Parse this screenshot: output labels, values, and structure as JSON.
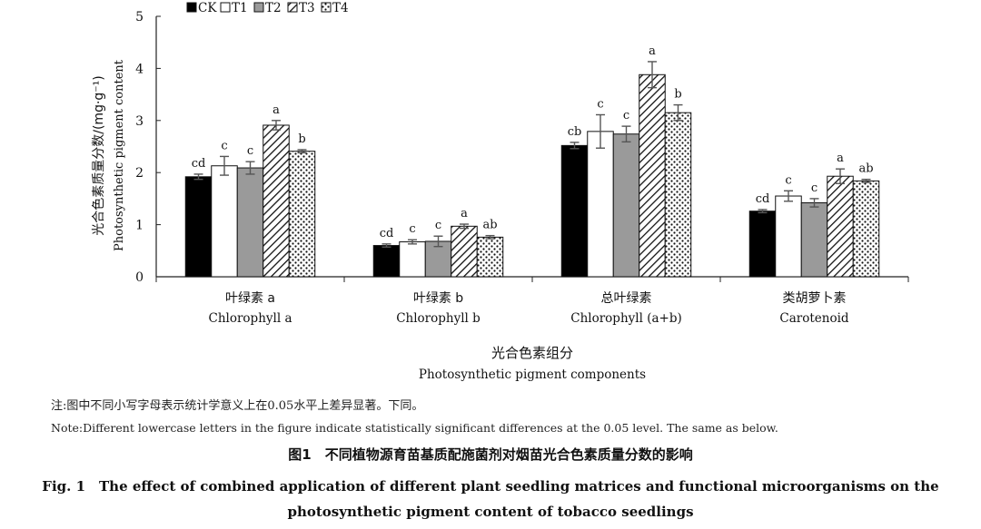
{
  "chart_data": {
    "type": "bar",
    "ylabel_cn": "光合色素质量分数/(mg·g⁻¹)",
    "ylabel_en": "Photosynthetic pigment content",
    "xlabel_cn": "光合色素组分",
    "xlabel_en": "Photosynthetic pigment components",
    "ylim": [
      0,
      5
    ],
    "yticks": [
      "0",
      "1",
      "2",
      "3",
      "4",
      "5"
    ],
    "grid": false,
    "legend_position": "top-left",
    "categories": [
      {
        "cn": "叶绿素 a",
        "en": "Chlorophyll a"
      },
      {
        "cn": "叶绿素 b",
        "en": "Chlorophyll b"
      },
      {
        "cn": "总叶绿素",
        "en": "Chlorophyll (a+b)"
      },
      {
        "cn": "类胡萝卜素",
        "en": "Carotenoid"
      }
    ],
    "series": [
      {
        "name": "CK",
        "pattern": "solid-black",
        "values": [
          1.92,
          0.6,
          2.52,
          1.26
        ],
        "errors": [
          0.05,
          0.03,
          0.06,
          0.03
        ],
        "letters": [
          "cd",
          "cd",
          "cb",
          "cd"
        ]
      },
      {
        "name": "T1",
        "pattern": "white",
        "values": [
          2.13,
          0.67,
          2.79,
          1.55
        ],
        "errors": [
          0.18,
          0.04,
          0.32,
          0.1
        ],
        "letters": [
          "c",
          "c",
          "c",
          "c"
        ]
      },
      {
        "name": "T2",
        "pattern": "solid-gray",
        "values": [
          2.09,
          0.68,
          2.74,
          1.42
        ],
        "errors": [
          0.12,
          0.1,
          0.15,
          0.08
        ],
        "letters": [
          "c",
          "c",
          "c",
          "c"
        ]
      },
      {
        "name": "T3",
        "pattern": "diagonal-hatch",
        "values": [
          2.91,
          0.97,
          3.88,
          1.93
        ],
        "errors": [
          0.09,
          0.04,
          0.25,
          0.14
        ],
        "letters": [
          "a",
          "a",
          "a",
          "a"
        ]
      },
      {
        "name": "T4",
        "pattern": "dots",
        "values": [
          2.41,
          0.76,
          3.15,
          1.84
        ],
        "errors": [
          0.03,
          0.03,
          0.15,
          0.03
        ],
        "letters": [
          "b",
          "ab",
          "b",
          "ab"
        ]
      }
    ]
  },
  "note_cn": "注:图中不同小写字母表示统计学意义上在0.05水平上差异显著。下同。",
  "note_en": "Note:Different lowercase letters in the figure indicate statistically significant differences at the 0.05 level. The same as below.",
  "caption_cn": "图1　不同植物源育苗基质配施菌剂对烟苗光合色素质量分数的影响",
  "caption_en_line1": "Fig. 1　The effect of combined application of different plant seedling matrices and functional microorganisms on the",
  "caption_en_line2": "photosynthetic pigment content of tobacco seedlings",
  "colors": {
    "axis": "#222222",
    "ck": "#000000",
    "t2": "#9a9a9a",
    "hatch": "#111111",
    "dot": "#111111"
  }
}
